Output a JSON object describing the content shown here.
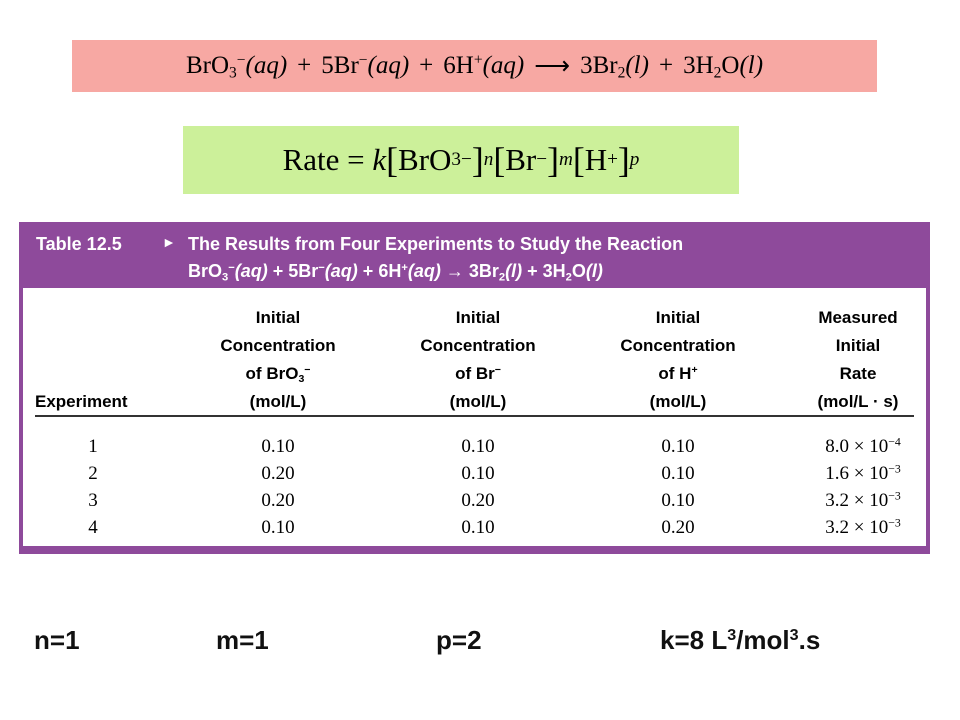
{
  "equation": {
    "reactant1": "BrO",
    "r1_sub": "3",
    "r1_sup": "−",
    "r1_state": "(aq)",
    "plus": "+",
    "reactant2": "5Br",
    "r2_sup": "−",
    "r2_state": "(aq)",
    "reactant3": "6H",
    "r3_sup": "+",
    "r3_state": "(aq)",
    "arrow": "⟶",
    "product1": "3Br",
    "p1_sub": "2",
    "p1_state": "(l)",
    "product2": "3H",
    "p2_sub": "2",
    "p2_mid": "O",
    "p2_state": "(l)"
  },
  "rate_law": {
    "prefix": "Rate = ",
    "k": "k",
    "bro": "BrO",
    "bro_sub": "3",
    "bro_sup": "−",
    "n": "n",
    "br": "Br",
    "br_sup": "−",
    "m": "m",
    "h": "H",
    "h_sup": "+",
    "p": "p"
  },
  "table": {
    "label": "Table 12.5",
    "marker": "►",
    "title_line1": "The Results from Four Experiments to Study the Reaction",
    "title_line2": {
      "a": "BrO",
      "a_sub": "3",
      "a_sup": "−",
      "a_state": "(aq)",
      "plus": " + ",
      "b": "5Br",
      "b_sup": "−",
      "b_state": "(aq)",
      "c": "6H",
      "c_sup": "+",
      "c_state": "(aq)",
      "arrow": " → ",
      "d": "3Br",
      "d_sub": "2",
      "d_state": "(l)",
      "e": "3H",
      "e_sub": "2",
      "e_mid": "O",
      "e_state": "(l)"
    },
    "headers": {
      "experiment": "Experiment",
      "c1_l1": "Initial",
      "c1_l2": "Concentration",
      "c1_l3": "of BrO",
      "c1_sub": "3",
      "c1_sup": "−",
      "c1_l4": "(mol/L)",
      "c2_l1": "Initial",
      "c2_l2": "Concentration",
      "c2_l3": "of Br",
      "c2_sup": "−",
      "c2_l4": "(mol/L)",
      "c3_l1": "Initial",
      "c3_l2": "Concentration",
      "c3_l3": "of H",
      "c3_sup": "+",
      "c3_l4": "(mol/L)",
      "c4_l1": "Measured",
      "c4_l2": "Initial",
      "c4_l3": "Rate",
      "c4_l4": "(mol/L · s)"
    },
    "rows": [
      {
        "exp": "1",
        "bro3": "0.10",
        "br": "0.10",
        "h": "0.10",
        "rate_mant": "8.0 × 10",
        "rate_exp": "−4"
      },
      {
        "exp": "2",
        "bro3": "0.20",
        "br": "0.10",
        "h": "0.10",
        "rate_mant": "1.6 × 10",
        "rate_exp": "−3"
      },
      {
        "exp": "3",
        "bro3": "0.20",
        "br": "0.20",
        "h": "0.10",
        "rate_mant": "3.2 × 10",
        "rate_exp": "−3"
      },
      {
        "exp": "4",
        "bro3": "0.10",
        "br": "0.10",
        "h": "0.20",
        "rate_mant": "3.2 × 10",
        "rate_exp": "−3"
      }
    ]
  },
  "results": {
    "n": "n=1",
    "m": "m=1",
    "p": "p=2",
    "k_text": "k=8 L",
    "k_sup1": "3",
    "k_mid": "/mol",
    "k_sup2": "3",
    "k_end": ".s"
  },
  "colors": {
    "equation_bg": "#f7a8a3",
    "rate_bg": "#ccf09a",
    "table_accent": "#8e4a9b"
  }
}
